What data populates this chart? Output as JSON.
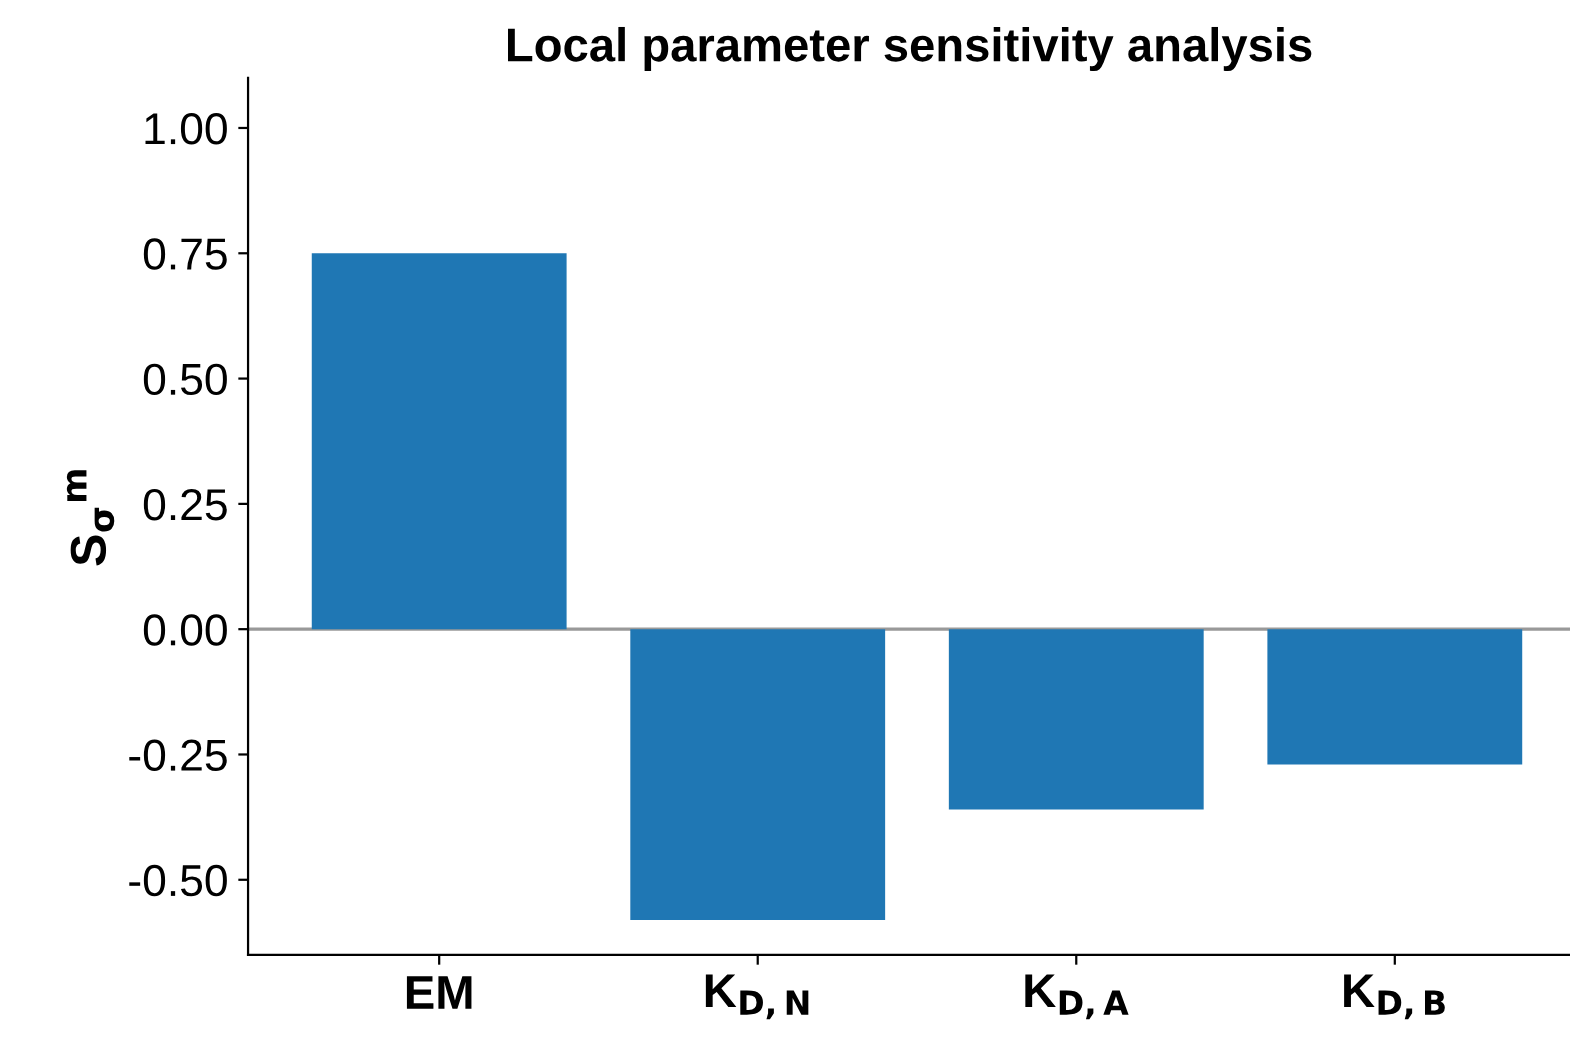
{
  "chart_data": {
    "type": "bar",
    "title": "Local parameter sensitivity analysis",
    "ylabel": "S$_{σ}$$^{m}$",
    "categories": [
      "EM",
      "K$_{D,N}$",
      "K$_{D,A}$",
      "K$_{D,B}$"
    ],
    "values": [
      0.75,
      -0.58,
      -0.36,
      -0.27
    ],
    "color": "#1f77b4",
    "ylim": [
      -0.65,
      1.1
    ],
    "yticks": [
      {
        "value": -0.5,
        "label": "-0.50"
      },
      {
        "value": -0.25,
        "label": "-0.25"
      },
      {
        "value": 0,
        "label": "0.00"
      },
      {
        "value": 0.25,
        "label": "0.25"
      },
      {
        "value": 0.5,
        "label": "0.50"
      },
      {
        "value": 0.75,
        "label": "0.75"
      },
      {
        "value": 1.0,
        "label": "1.00"
      }
    ],
    "ref_lines": [
      {
        "axis": "y",
        "value": 0,
        "color": "#999999"
      }
    ],
    "grid": false
  }
}
